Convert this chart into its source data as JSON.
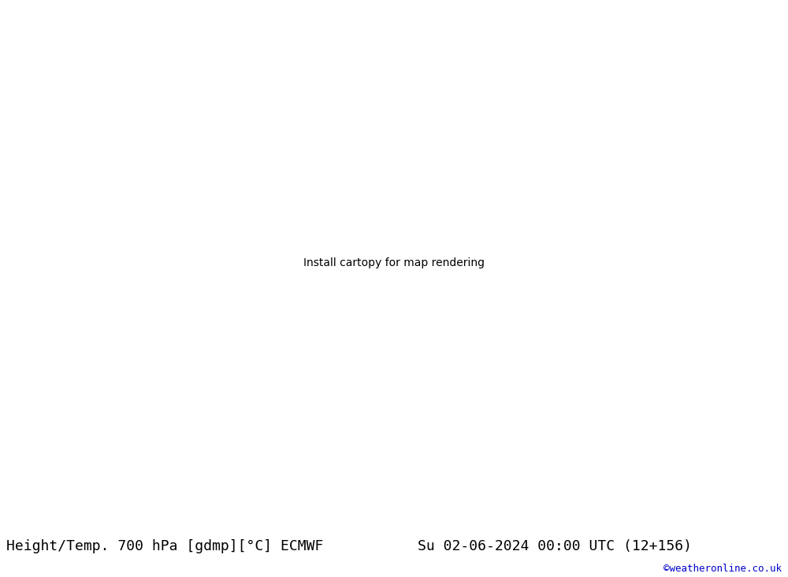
{
  "title_left": "Height/Temp. 700 hPa [gdmp][°C] ECMWF",
  "title_right": "Su 02-06-2024 00:00 UTC (12+156)",
  "watermark": "©weatheronline.co.uk",
  "title_fontsize": 13,
  "watermark_color": "#0000cc",
  "fig_width": 10.0,
  "fig_height": 7.33,
  "dpi": 100,
  "land_green": "#c8eaa0",
  "land_grey": "#c0c0c0",
  "sea_color": "#e0e0e0",
  "border_color": "#a0a0a0",
  "black_line_color": "#000000",
  "red_line_color": "#dd2222",
  "orange_line_color": "#e08000",
  "magenta_line_color": "#e0007a",
  "map_extent": [
    -45,
    45,
    30,
    75
  ]
}
